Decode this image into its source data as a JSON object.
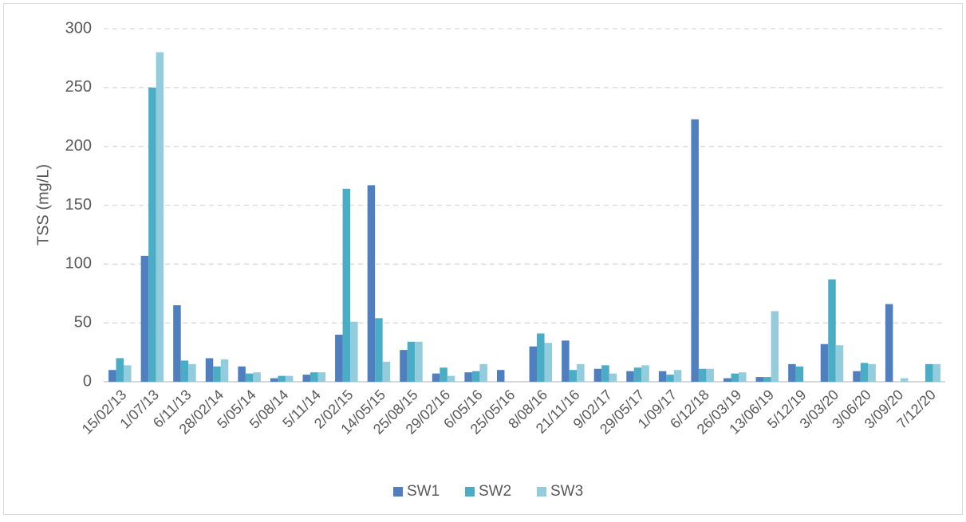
{
  "chart_data": {
    "type": "bar",
    "y_label": "TSS (mg/L)",
    "categories": [
      "15/02/13",
      "1/07/13",
      "6/11/13",
      "28/02/14",
      "5/05/14",
      "5/08/14",
      "5/11/14",
      "2/02/15",
      "14/05/15",
      "25/08/15",
      "29/02/16",
      "6/05/16",
      "25/05/16",
      "8/08/16",
      "21/11/16",
      "9/02/17",
      "29/05/17",
      "1/09/17",
      "6/12/18",
      "26/03/19",
      "13/06/19",
      "5/12/19",
      "3/03/20",
      "3/06/20",
      "3/09/20",
      "7/12/20"
    ],
    "series": [
      {
        "name": "SW1",
        "color": "#4f7fbf",
        "values": [
          10,
          107,
          65,
          20,
          13,
          3,
          6,
          40,
          167,
          27,
          7,
          8,
          10,
          30,
          35,
          11,
          9,
          9,
          223,
          3,
          4,
          15,
          32,
          9,
          66,
          null
        ]
      },
      {
        "name": "SW2",
        "color": "#4aacc5",
        "values": [
          20,
          250,
          18,
          13,
          7,
          5,
          8,
          164,
          54,
          34,
          12,
          9,
          null,
          41,
          10,
          14,
          12,
          6,
          11,
          7,
          4,
          13,
          87,
          16,
          null,
          15
        ]
      },
      {
        "name": "SW3",
        "color": "#93cddd",
        "values": [
          14,
          280,
          15,
          19,
          8,
          5,
          8,
          51,
          17,
          34,
          5,
          15,
          null,
          33,
          15,
          7,
          14,
          10,
          11,
          8,
          60,
          null,
          31,
          15,
          3,
          15
        ]
      }
    ],
    "ylim": [
      0,
      300
    ],
    "yticks": [
      0,
      50,
      100,
      150,
      200,
      250,
      300
    ],
    "grid": true,
    "legend": "bottom"
  }
}
